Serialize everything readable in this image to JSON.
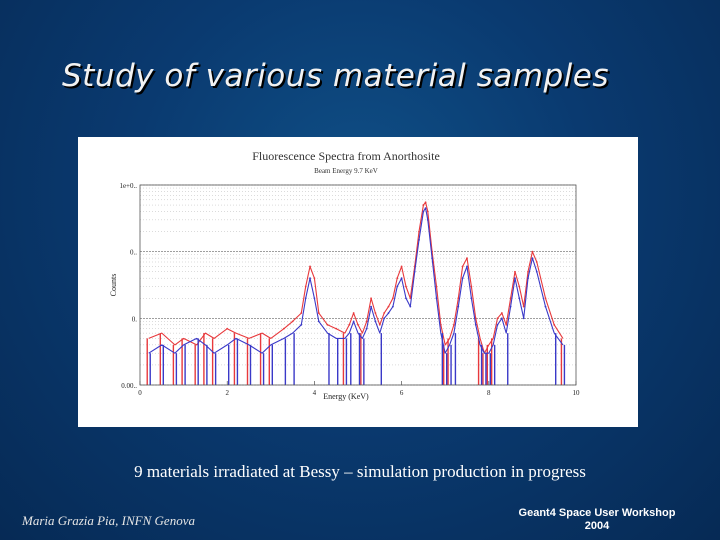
{
  "slide": {
    "title": "Study of various material samples",
    "caption": "9 materials irradiated at Bessy – simulation production in progress",
    "author": "Maria Grazia Pia, INFN Genova",
    "workshop_line1": "Geant4 Space User Workshop",
    "workshop_line2": "2004"
  },
  "colors": {
    "background": "#0a3a70",
    "title_text": "#f2f2f2",
    "series_red": "#e8393c",
    "series_blue": "#3a39c8",
    "grid": "#888888"
  },
  "chart_data": {
    "type": "line",
    "title": "Fluorescence Spectra from Anorthosite",
    "subtitle": "Beam Energy 9.7 KeV",
    "xlabel": "Energy (KeV)",
    "ylabel": "Counts",
    "xlim": [
      0,
      10
    ],
    "ylim": [
      0.001,
      1
    ],
    "y_scale": "log",
    "grid": true,
    "x_ticks": [
      "0",
      "2",
      "4",
      "6",
      "8",
      "10"
    ],
    "y_tick_labels": [
      "1e+0..",
      "0..",
      "0.",
      "0.00.."
    ],
    "series": [
      {
        "color": "red",
        "x": [
          0.2,
          0.5,
          0.8,
          1.0,
          1.3,
          1.5,
          1.7,
          2.0,
          2.2,
          2.5,
          2.8,
          3.0,
          3.3,
          3.5,
          3.7,
          3.8,
          3.9,
          4.0,
          4.1,
          4.3,
          4.5,
          4.7,
          4.8,
          4.9,
          5.0,
          5.1,
          5.2,
          5.3,
          5.4,
          5.5,
          5.6,
          5.7,
          5.8,
          5.9,
          6.0,
          6.1,
          6.2,
          6.3,
          6.4,
          6.5,
          6.55,
          6.6,
          6.7,
          6.8,
          6.9,
          7.0,
          7.1,
          7.2,
          7.3,
          7.4,
          7.5,
          7.6,
          7.7,
          7.8,
          7.9,
          8.0,
          8.1,
          8.2,
          8.3,
          8.4,
          8.5,
          8.6,
          8.7,
          8.8,
          8.9,
          9.0,
          9.1,
          9.3,
          9.5,
          9.7
        ],
        "values": [
          0.005,
          0.006,
          0.004,
          0.005,
          0.004,
          0.006,
          0.005,
          0.007,
          0.006,
          0.005,
          0.006,
          0.005,
          0.007,
          0.009,
          0.012,
          0.03,
          0.06,
          0.04,
          0.012,
          0.008,
          0.007,
          0.006,
          0.008,
          0.012,
          0.008,
          0.006,
          0.009,
          0.02,
          0.012,
          0.008,
          0.012,
          0.015,
          0.02,
          0.04,
          0.06,
          0.03,
          0.02,
          0.06,
          0.2,
          0.5,
          0.55,
          0.4,
          0.1,
          0.03,
          0.008,
          0.004,
          0.005,
          0.008,
          0.02,
          0.06,
          0.08,
          0.03,
          0.01,
          0.005,
          0.003,
          0.004,
          0.005,
          0.01,
          0.012,
          0.008,
          0.02,
          0.05,
          0.03,
          0.015,
          0.05,
          0.1,
          0.07,
          0.02,
          0.008,
          0.005
        ]
      },
      {
        "color": "blue",
        "x": [
          0.2,
          0.5,
          0.8,
          1.0,
          1.3,
          1.5,
          1.7,
          2.0,
          2.2,
          2.5,
          2.8,
          3.0,
          3.3,
          3.5,
          3.7,
          3.8,
          3.9,
          4.0,
          4.1,
          4.3,
          4.5,
          4.7,
          4.8,
          4.9,
          5.0,
          5.1,
          5.2,
          5.3,
          5.4,
          5.5,
          5.6,
          5.7,
          5.8,
          5.9,
          6.0,
          6.1,
          6.2,
          6.3,
          6.4,
          6.5,
          6.55,
          6.6,
          6.7,
          6.8,
          6.9,
          7.0,
          7.1,
          7.2,
          7.3,
          7.4,
          7.5,
          7.6,
          7.7,
          7.8,
          7.9,
          8.0,
          8.1,
          8.2,
          8.3,
          8.4,
          8.5,
          8.6,
          8.7,
          8.8,
          8.9,
          9.0,
          9.1,
          9.3,
          9.5,
          9.7
        ],
        "values": [
          0.003,
          0.004,
          0.003,
          0.004,
          0.005,
          0.004,
          0.003,
          0.004,
          0.005,
          0.004,
          0.003,
          0.004,
          0.005,
          0.006,
          0.008,
          0.02,
          0.04,
          0.02,
          0.009,
          0.006,
          0.005,
          0.005,
          0.006,
          0.009,
          0.006,
          0.005,
          0.007,
          0.015,
          0.009,
          0.006,
          0.01,
          0.012,
          0.015,
          0.03,
          0.04,
          0.02,
          0.015,
          0.05,
          0.15,
          0.4,
          0.45,
          0.3,
          0.08,
          0.02,
          0.006,
          0.003,
          0.004,
          0.006,
          0.015,
          0.04,
          0.06,
          0.02,
          0.008,
          0.004,
          0.003,
          0.003,
          0.004,
          0.008,
          0.01,
          0.006,
          0.015,
          0.04,
          0.02,
          0.01,
          0.04,
          0.08,
          0.05,
          0.015,
          0.006,
          0.004
        ]
      }
    ]
  }
}
